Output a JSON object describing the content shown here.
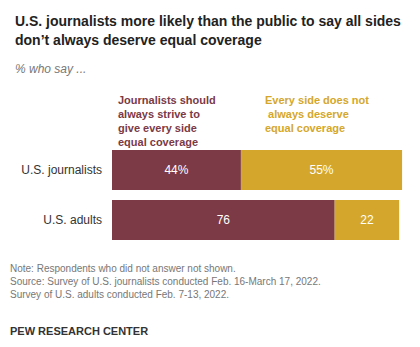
{
  "chart_data": {
    "type": "bar",
    "title": "U.S. journalists more likely than the public to say all sides don’t always deserve equal coverage",
    "subtitle": "% who say ...",
    "orientation": "horizontal",
    "stacked": true,
    "data_labels": true,
    "grid": false,
    "tick_labels": "y",
    "categories": [
      "U.S. journalists",
      "U.S. adults"
    ],
    "xlim": [
      0,
      100
    ],
    "series": [
      {
        "name": "Journalists should always strive to give every side equal coverage",
        "color": "#7b3a46",
        "values": [
          44,
          76
        ],
        "value_labels": [
          "44%",
          "76"
        ]
      },
      {
        "name": "Every side does not always deserve equal coverage",
        "color": "#d4a72c",
        "values": [
          55,
          22
        ],
        "value_labels": [
          "55%",
          "22"
        ]
      }
    ],
    "note": "Note: Respondents who did not answer not shown.",
    "source": "Source: Survey of U.S. journalists conducted Feb. 16-March 17, 2022. Survey of U.S. adults conducted Feb. 7-13, 2022.",
    "credit": "PEW RESEARCH CENTER"
  }
}
